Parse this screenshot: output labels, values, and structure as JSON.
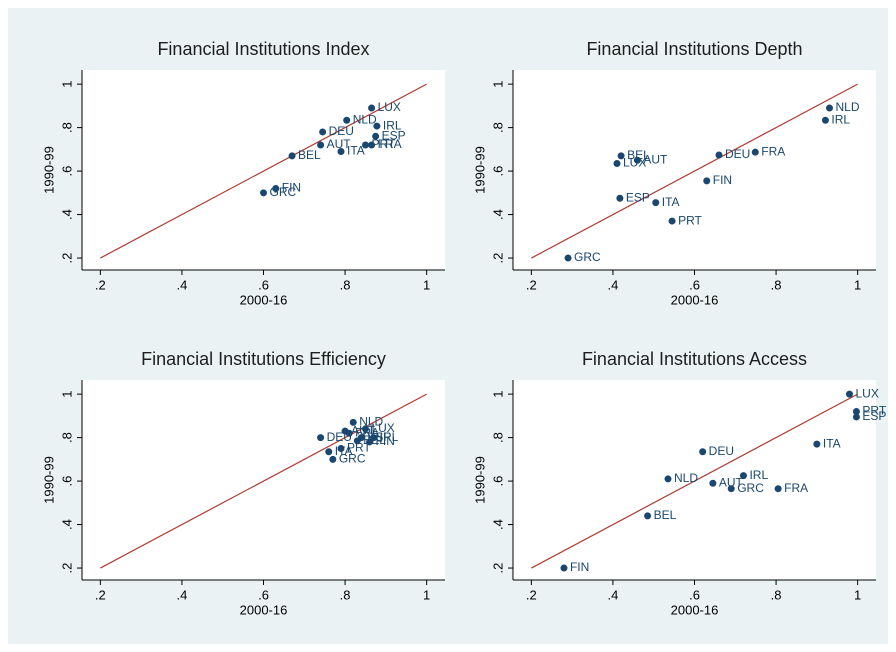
{
  "chart_data": [
    {
      "type": "scatter",
      "title": "Financial Institutions Index",
      "xlabel": "2000-16",
      "ylabel": "1990-99",
      "labels": [
        "LUX",
        "NLD",
        "IRL",
        "ESP",
        "FRA",
        "PRT",
        "DEU",
        "AUT",
        "ITA",
        "BEL",
        "FIN",
        "GRC"
      ],
      "x": [
        0.865,
        0.804,
        0.878,
        0.875,
        0.865,
        0.85,
        0.745,
        0.74,
        0.79,
        0.67,
        0.63,
        0.6
      ],
      "values": [
        0.89,
        0.834,
        0.807,
        0.76,
        0.72,
        0.72,
        0.78,
        0.72,
        0.69,
        0.67,
        0.52,
        0.5
      ],
      "color": "#1a476f",
      "line_color": "#b03a2e",
      "diagonal": [
        0.2,
        1
      ],
      "xlim": [
        0.155,
        1.045
      ],
      "ylim": [
        0.145,
        1.065
      ],
      "xticks": [
        {
          "value": 0.2,
          "label": ".2"
        },
        {
          "value": 0.4,
          "label": ".4"
        },
        {
          "value": 0.6,
          "label": ".6"
        },
        {
          "value": 0.8,
          "label": ".8"
        },
        1
      ],
      "yticks": [
        {
          "value": 0.2,
          "label": ".2"
        },
        {
          "value": 0.4,
          "label": ".4"
        },
        {
          "value": 0.6,
          "label": ".6"
        },
        {
          "value": 0.8,
          "label": ".8"
        },
        1
      ]
    },
    {
      "type": "scatter",
      "title": "Financial Institutions Depth",
      "xlabel": "2000-16",
      "ylabel": "1990-99",
      "labels": [
        "NLD",
        "IRL",
        "FRA",
        "DEU",
        "BEL",
        "LUX",
        "AUT",
        "FIN",
        "ESP",
        "ITA",
        "PRT",
        "GRC"
      ],
      "x": [
        0.931,
        0.921,
        0.749,
        0.66,
        0.42,
        0.41,
        0.46,
        0.63,
        0.417,
        0.505,
        0.545,
        0.29
      ],
      "values": [
        0.89,
        0.834,
        0.687,
        0.674,
        0.67,
        0.635,
        0.65,
        0.555,
        0.475,
        0.455,
        0.37,
        0.2
      ],
      "color": "#1a476f",
      "line_color": "#b03a2e",
      "diagonal": [
        0.2,
        1
      ],
      "xlim": [
        0.155,
        1.045
      ],
      "ylim": [
        0.145,
        1.065
      ],
      "xticks": [
        {
          "value": 0.2,
          "label": ".2"
        },
        {
          "value": 0.4,
          "label": ".4"
        },
        {
          "value": 0.6,
          "label": ".6"
        },
        {
          "value": 0.8,
          "label": ".8"
        },
        1
      ],
      "yticks": [
        {
          "value": 0.2,
          "label": ".2"
        },
        {
          "value": 0.4,
          "label": ".4"
        },
        {
          "value": 0.6,
          "label": ".6"
        },
        {
          "value": 0.8,
          "label": ".8"
        },
        1
      ]
    },
    {
      "type": "scatter",
      "title": "Financial Institutions Efficiency",
      "xlabel": "2000-16",
      "ylabel": "1990-99",
      "labels": [
        "NLD",
        "AUT",
        "LUX",
        "ESP",
        "FIN",
        "IRL",
        "BEL",
        "DEU",
        "FRA",
        "PRT",
        "ITA",
        "GRC"
      ],
      "x": [
        0.82,
        0.8,
        0.85,
        0.84,
        0.86,
        0.87,
        0.83,
        0.74,
        0.81,
        0.79,
        0.76,
        0.77
      ],
      "values": [
        0.87,
        0.83,
        0.84,
        0.8,
        0.78,
        0.8,
        0.785,
        0.8,
        0.82,
        0.75,
        0.735,
        0.7
      ],
      "color": "#1a476f",
      "line_color": "#b03a2e",
      "diagonal": [
        0.2,
        1
      ],
      "xlim": [
        0.155,
        1.045
      ],
      "ylim": [
        0.145,
        1.065
      ],
      "xticks": [
        {
          "value": 0.2,
          "label": ".2"
        },
        {
          "value": 0.4,
          "label": ".4"
        },
        {
          "value": 0.6,
          "label": ".6"
        },
        {
          "value": 0.8,
          "label": ".8"
        },
        1
      ],
      "yticks": [
        {
          "value": 0.2,
          "label": ".2"
        },
        {
          "value": 0.4,
          "label": ".4"
        },
        {
          "value": 0.6,
          "label": ".6"
        },
        {
          "value": 0.8,
          "label": ".8"
        },
        1
      ]
    },
    {
      "type": "scatter",
      "title": "Financial Institutions Access",
      "xlabel": "2000-16",
      "ylabel": "1990-99",
      "labels": [
        "LUX",
        "PRT",
        "ESP",
        "ITA",
        "DEU",
        "IRL",
        "NLD",
        "AUT",
        "GRC",
        "FRA",
        "BEL",
        "FIN"
      ],
      "x": [
        0.98,
        0.997,
        0.997,
        0.9,
        0.62,
        0.72,
        0.535,
        0.645,
        0.69,
        0.805,
        0.485,
        0.28
      ],
      "values": [
        1.0,
        0.92,
        0.895,
        0.77,
        0.735,
        0.625,
        0.61,
        0.59,
        0.565,
        0.565,
        0.44,
        0.2
      ],
      "color": "#1a476f",
      "line_color": "#b03a2e",
      "diagonal": [
        0.2,
        1
      ],
      "xlim": [
        0.155,
        1.045
      ],
      "ylim": [
        0.145,
        1.065
      ],
      "xticks": [
        {
          "value": 0.2,
          "label": ".2"
        },
        {
          "value": 0.4,
          "label": ".4"
        },
        {
          "value": 0.6,
          "label": ".6"
        },
        {
          "value": 0.8,
          "label": ".8"
        },
        1
      ],
      "yticks": [
        {
          "value": 0.2,
          "label": ".2"
        },
        {
          "value": 0.4,
          "label": ".4"
        },
        {
          "value": 0.6,
          "label": ".6"
        },
        {
          "value": 0.8,
          "label": ".8"
        },
        1
      ]
    }
  ]
}
